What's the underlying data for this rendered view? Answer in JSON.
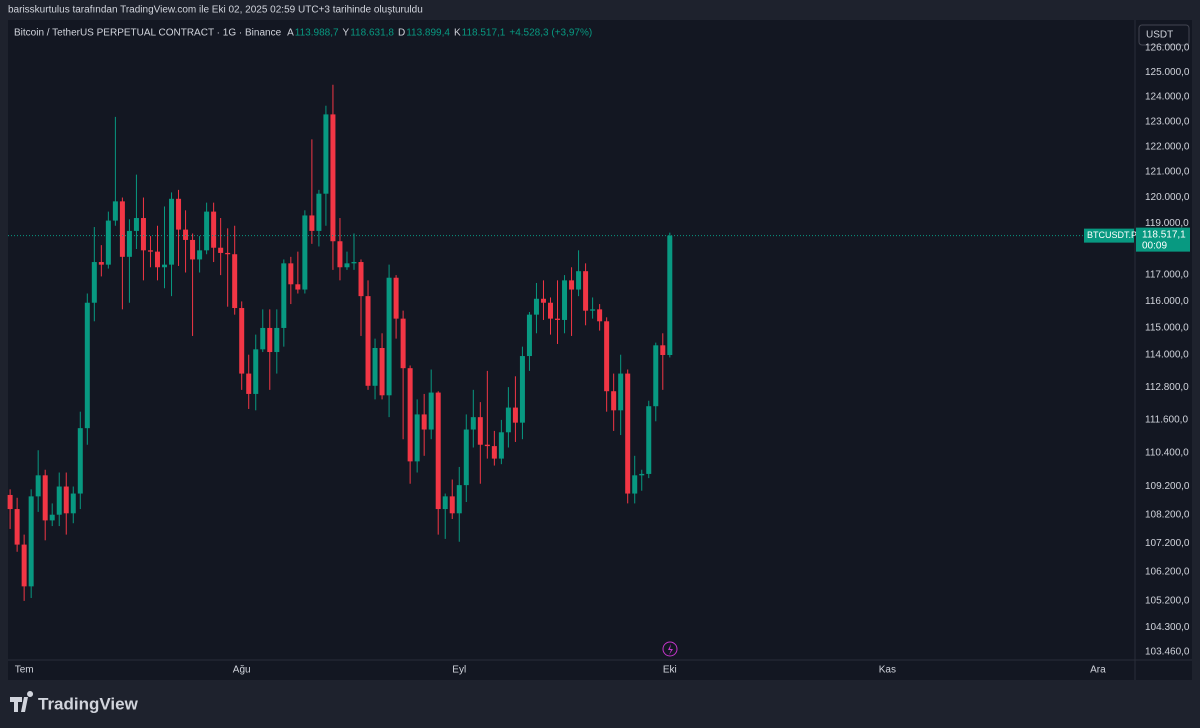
{
  "caption": "barisskurtulus tarafından TradingView.com ile Eki 02, 2025 02:59 UTC+3 tarihinde oluşturuldu",
  "brand": "TradingView",
  "chart_data": {
    "type": "candlestick",
    "title": "Bitcoin / TetherUS PERPETUAL CONTRACT · 1G · Binance",
    "ohlc_legend": [
      {
        "key": "A",
        "text": "113.988,7"
      },
      {
        "key": "Y",
        "text": "118.631,8"
      },
      {
        "key": "D",
        "text": "113.899,4"
      },
      {
        "key": "K",
        "text": "118.517,1"
      }
    ],
    "change": "+4.528,3 (+3,97%)",
    "currency": "USDT",
    "symbol": "BTCUSDT.P",
    "last_price_label": "118.517,1",
    "countdown": "00:09",
    "up_color": "#089981",
    "down_color": "#f23645",
    "log_scale": true,
    "grid": false,
    "open": [
      108900,
      108400,
      107150,
      105700,
      108850,
      109600,
      108000,
      108200,
      109200,
      108250,
      108950,
      111300,
      115950,
      117500,
      117400,
      119100,
      119850,
      117700,
      118700,
      119200,
      117950,
      117900,
      117300,
      117400,
      119950,
      118750,
      118350,
      117600,
      117950,
      119450,
      118050,
      117850,
      117800,
      115750,
      113300,
      112550,
      114200,
      115000,
      114100,
      115000,
      117450,
      116650,
      116450,
      119300,
      118700,
      120150,
      123300,
      118300,
      117300,
      117450,
      117500,
      116200,
      112850,
      114250,
      112500,
      116900,
      115350,
      113500,
      110100,
      111800,
      111250,
      112600,
      108400,
      108850,
      108250,
      109250,
      111250,
      111700,
      110700,
      110650,
      110200,
      111150,
      112050,
      111500,
      113950,
      115500,
      116100,
      115950,
      115350,
      115300,
      116800,
      116450,
      117150,
      115650,
      115700,
      115250,
      112650,
      111950,
      113300,
      108950,
      109600,
      109650,
      112100,
      114350,
      113988.7
    ],
    "high": [
      109100,
      108800,
      107500,
      109100,
      110500,
      109800,
      108600,
      109700,
      109700,
      109200,
      111900,
      116300,
      118850,
      118150,
      119450,
      123200,
      120000,
      119150,
      120900,
      120000,
      118500,
      118900,
      119650,
      120200,
      120300,
      119500,
      118600,
      118500,
      119800,
      119800,
      119200,
      118800,
      118900,
      116000,
      114000,
      114750,
      115700,
      115700,
      115700,
      117600,
      117700,
      117900,
      119500,
      122300,
      120300,
      123650,
      124500,
      119200,
      117900,
      118600,
      117600,
      116800,
      114600,
      114800,
      117400,
      117000,
      115650,
      113600,
      112350,
      112550,
      113450,
      112650,
      108950,
      109450,
      109900,
      111800,
      112700,
      112250,
      113400,
      111200,
      111600,
      112800,
      113200,
      114300,
      115600,
      116700,
      116800,
      116150,
      116800,
      117000,
      117300,
      117950,
      117450,
      116150,
      115900,
      115400,
      113300,
      114000,
      113450,
      110300,
      109800,
      112300,
      114450,
      114800,
      118631.8
    ],
    "low": [
      107700,
      106900,
      105200,
      105300,
      108300,
      107300,
      107800,
      107800,
      107500,
      107900,
      108400,
      110700,
      115250,
      116950,
      117250,
      118900,
      115700,
      115950,
      118000,
      116800,
      117300,
      116800,
      116500,
      116200,
      117350,
      117100,
      114700,
      117100,
      117800,
      117500,
      117000,
      115800,
      115500,
      112700,
      112000,
      111950,
      114100,
      112700,
      113300,
      114300,
      115900,
      116300,
      116300,
      118200,
      118100,
      118900,
      117200,
      116800,
      117200,
      117200,
      114700,
      112700,
      112350,
      112350,
      111700,
      114600,
      110900,
      109300,
      109700,
      110300,
      110900,
      107500,
      107350,
      108050,
      107250,
      108650,
      110600,
      109300,
      110200,
      109950,
      110000,
      110600,
      110800,
      110900,
      113400,
      114800,
      115300,
      114750,
      114400,
      114800,
      114700,
      116200,
      115100,
      115350,
      114900,
      111900,
      111200,
      111050,
      108600,
      108600,
      109050,
      109500,
      111550,
      112700,
      113899.4
    ],
    "close": [
      108400,
      107150,
      105700,
      108850,
      109600,
      108000,
      108200,
      109200,
      108250,
      108950,
      111300,
      115950,
      117500,
      117400,
      119100,
      119850,
      117700,
      118700,
      119200,
      117950,
      117900,
      117300,
      117400,
      119950,
      118750,
      118350,
      117600,
      117950,
      119450,
      118050,
      117850,
      117800,
      115750,
      113300,
      112550,
      114200,
      115000,
      114100,
      115000,
      117450,
      116650,
      116450,
      119300,
      118700,
      120150,
      123300,
      118300,
      117300,
      117450,
      117500,
      116200,
      112850,
      114250,
      112500,
      116900,
      115350,
      113500,
      110100,
      111800,
      111250,
      112600,
      108400,
      108850,
      108250,
      109250,
      111250,
      111700,
      110700,
      110650,
      110200,
      111150,
      112050,
      111500,
      113950,
      115500,
      116100,
      115950,
      115350,
      115300,
      116800,
      116450,
      117150,
      115650,
      115700,
      115250,
      112650,
      111950,
      113300,
      108950,
      109600,
      109650,
      112100,
      114350,
      113988.7,
      118517.1
    ],
    "xlim": [
      -0.3,
      160
    ],
    "xticks": [
      {
        "value": 2,
        "label": "Tem"
      },
      {
        "value": 33,
        "label": "Ağu"
      },
      {
        "value": 64,
        "label": "Eyl"
      },
      {
        "value": 94,
        "label": "Eki"
      },
      {
        "value": 125,
        "label": "Kas"
      },
      {
        "value": 155,
        "label": "Ara"
      }
    ],
    "ylim": [
      103190,
      126330
    ],
    "yticks": [
      {
        "value": 126000,
        "label": "126.000,0"
      },
      {
        "value": 125000,
        "label": "125.000,0"
      },
      {
        "value": 124000,
        "label": "124.000,0"
      },
      {
        "value": 123000,
        "label": "123.000,0"
      },
      {
        "value": 122000,
        "label": "122.000,0"
      },
      {
        "value": 121000,
        "label": "121.000,0"
      },
      {
        "value": 120000,
        "label": "120.000,0"
      },
      {
        "value": 119000,
        "label": "119.000,0"
      },
      {
        "value": 117000,
        "label": "117.000,0"
      },
      {
        "value": 116000,
        "label": "116.000,0"
      },
      {
        "value": 115000,
        "label": "115.000,0"
      },
      {
        "value": 114000,
        "label": "114.000,0"
      },
      {
        "value": 112800,
        "label": "112.800,0"
      },
      {
        "value": 111600,
        "label": "111.600,0"
      },
      {
        "value": 110400,
        "label": "110.400,0"
      },
      {
        "value": 109200,
        "label": "109.200,0"
      },
      {
        "value": 108200,
        "label": "108.200,0"
      },
      {
        "value": 107200,
        "label": "107.200,0"
      },
      {
        "value": 106200,
        "label": "106.200,0"
      },
      {
        "value": 105200,
        "label": "105.200,0"
      },
      {
        "value": 104300,
        "label": "104.300,0"
      },
      {
        "value": 103460,
        "label": "103.460,0"
      }
    ]
  }
}
